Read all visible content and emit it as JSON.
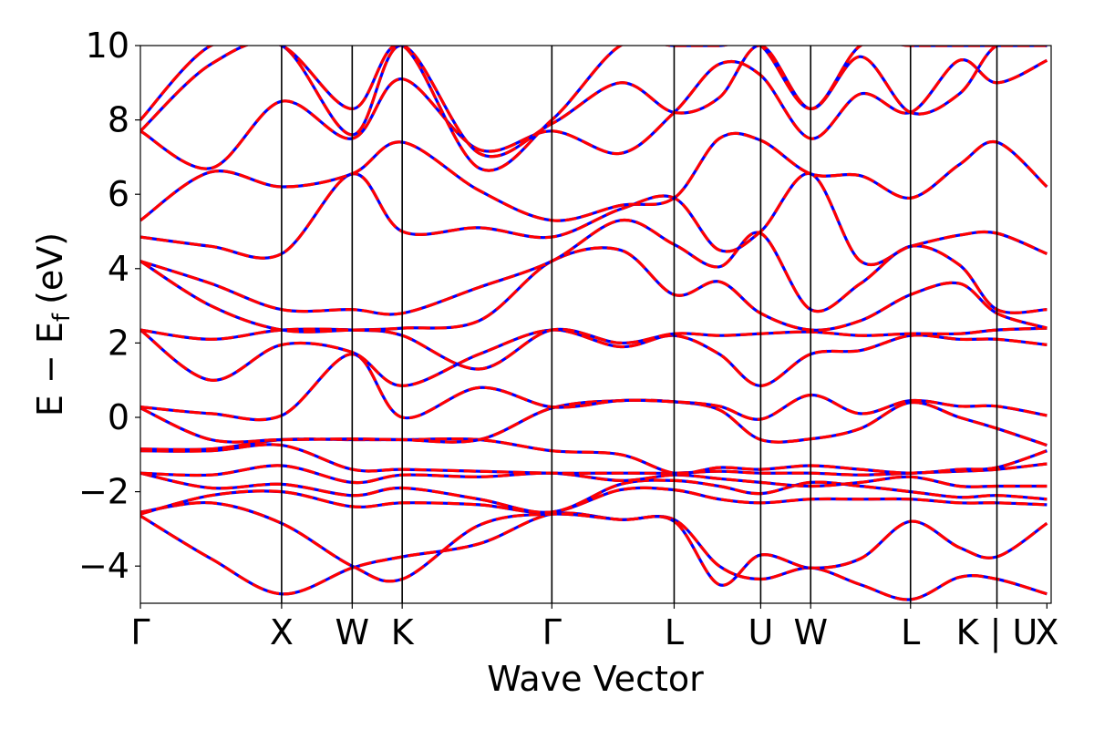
{
  "chart_data": {
    "type": "line",
    "title": "",
    "xlabel": "Wave Vector",
    "ylabel": "E − E",
    "ylabel_subscript": "f",
    "ylabel_unit": "(eV)",
    "ylim": [
      -5,
      10
    ],
    "yticks": [
      -4,
      -2,
      0,
      2,
      4,
      6,
      8,
      10
    ],
    "ytick_labels": [
      "−4",
      "−2",
      "0",
      "2",
      "4",
      "6",
      "8",
      "10"
    ],
    "xlim": [
      0,
      6.45
    ],
    "high_symmetry_points": [
      {
        "label": "Γ",
        "x": 0.0
      },
      {
        "label": "X",
        "x": 1.0
      },
      {
        "label": "W",
        "x": 1.5
      },
      {
        "label": "K",
        "x": 1.854
      },
      {
        "label": "Γ",
        "x": 2.914
      },
      {
        "label": "L",
        "x": 3.78
      },
      {
        "label": "U",
        "x": 4.393
      },
      {
        "label": "W",
        "x": 4.747
      },
      {
        "label": "L",
        "x": 5.454
      },
      {
        "label": "K | U",
        "x": 6.066
      },
      {
        "label": "X",
        "x": 6.42
      }
    ],
    "grid": false,
    "legend": "none",
    "series_styles": [
      {
        "color": "#0000ff",
        "style": "solid"
      },
      {
        "color": "#ff0000",
        "style": "dashed"
      }
    ],
    "x": [
      0.0,
      0.5,
      1.0,
      1.5,
      1.854,
      2.4,
      2.914,
      3.4,
      3.78,
      4.1,
      4.393,
      4.747,
      5.1,
      5.454,
      5.8,
      6.066,
      6.42
    ],
    "bands": [
      [
        -2.65,
        -3.8,
        -4.75,
        -4.05,
        -3.75,
        -3.4,
        -2.6,
        -2.75,
        -2.75,
        -4.0,
        -4.35,
        -4.05,
        -4.5,
        -4.9,
        -4.3,
        -4.35,
        -4.75
      ],
      [
        -2.55,
        -2.3,
        -2.85,
        -4.0,
        -4.35,
        -2.9,
        -2.6,
        -2.75,
        -2.8,
        -4.5,
        -3.7,
        -4.05,
        -3.8,
        -2.8,
        -3.5,
        -3.75,
        -2.85
      ],
      [
        -2.6,
        -2.1,
        -2.0,
        -2.4,
        -2.3,
        -2.35,
        -2.55,
        -1.95,
        -1.95,
        -2.2,
        -2.3,
        -2.2,
        -2.2,
        -2.2,
        -2.3,
        -2.3,
        -2.35
      ],
      [
        -1.5,
        -1.9,
        -1.8,
        -2.1,
        -1.9,
        -2.2,
        -2.55,
        -1.8,
        -1.7,
        -1.85,
        -2.05,
        -1.75,
        -1.85,
        -2.0,
        -2.15,
        -2.1,
        -2.2
      ],
      [
        -1.5,
        -1.55,
        -1.3,
        -1.75,
        -1.55,
        -1.6,
        -1.5,
        -1.7,
        -1.55,
        -1.65,
        -1.75,
        -1.85,
        -1.75,
        -1.6,
        -1.85,
        -1.85,
        -1.85
      ],
      [
        -0.9,
        -0.9,
        -0.75,
        -1.4,
        -1.4,
        -1.45,
        -1.5,
        -1.5,
        -1.5,
        -1.45,
        -1.5,
        -1.5,
        -1.55,
        -1.5,
        -1.45,
        -1.4,
        -1.25
      ],
      [
        -0.85,
        -0.85,
        -0.6,
        -0.6,
        -0.6,
        -0.6,
        -0.9,
        -1.0,
        -1.5,
        -1.35,
        -1.4,
        -1.3,
        -1.4,
        -1.5,
        -1.4,
        -1.35,
        -0.9
      ],
      [
        0.25,
        -0.6,
        -0.6,
        -0.58,
        -0.6,
        -0.6,
        0.25,
        0.45,
        0.42,
        0.2,
        -0.6,
        -0.58,
        -0.3,
        0.4,
        0.0,
        -0.3,
        -0.75
      ],
      [
        0.28,
        0.1,
        0.05,
        1.7,
        0.0,
        0.8,
        0.28,
        0.45,
        0.42,
        0.3,
        -0.05,
        0.6,
        0.1,
        0.45,
        0.3,
        0.3,
        0.05
      ],
      [
        2.35,
        1.0,
        1.95,
        1.75,
        0.85,
        1.7,
        2.35,
        1.9,
        2.2,
        1.7,
        0.85,
        1.7,
        1.8,
        2.2,
        2.1,
        2.1,
        1.95
      ],
      [
        2.35,
        2.1,
        2.35,
        2.35,
        2.2,
        1.3,
        2.35,
        2.0,
        2.25,
        2.2,
        2.25,
        2.3,
        2.2,
        2.25,
        2.25,
        2.35,
        2.4
      ],
      [
        4.2,
        3.0,
        2.35,
        2.35,
        2.4,
        2.6,
        4.2,
        4.5,
        3.3,
        3.65,
        2.8,
        2.35,
        2.6,
        3.3,
        3.6,
        2.8,
        2.4
      ],
      [
        4.2,
        3.6,
        2.9,
        2.9,
        2.8,
        3.5,
        4.2,
        5.3,
        4.65,
        4.05,
        4.95,
        2.9,
        3.6,
        4.6,
        4.1,
        2.9,
        2.9
      ],
      [
        4.85,
        4.6,
        4.4,
        6.55,
        5.0,
        5.1,
        4.85,
        5.6,
        5.9,
        4.5,
        5.0,
        6.55,
        4.2,
        4.6,
        4.9,
        4.95,
        4.4
      ],
      [
        5.3,
        6.6,
        6.2,
        6.55,
        7.4,
        6.1,
        5.3,
        5.7,
        5.9,
        7.5,
        7.45,
        6.55,
        6.5,
        5.9,
        6.8,
        7.4,
        6.2
      ],
      [
        7.7,
        6.7,
        8.5,
        7.5,
        9.1,
        7.2,
        7.7,
        7.1,
        8.2,
        9.5,
        9.2,
        7.5,
        8.7,
        8.2,
        9.6,
        9.0,
        9.6
      ],
      [
        7.7,
        9.5,
        10.0,
        7.6,
        10.0,
        7.1,
        7.9,
        9.0,
        8.2,
        8.6,
        10.0,
        8.3,
        9.7,
        8.2,
        8.7,
        10.0,
        10.0
      ],
      [
        8.0,
        10.0,
        10.0,
        8.3,
        10.0,
        6.7,
        8.0,
        10.0,
        10.0,
        10.0,
        10.0,
        8.3,
        10.0,
        10.0,
        10.0,
        10.0,
        10.0
      ]
    ]
  }
}
